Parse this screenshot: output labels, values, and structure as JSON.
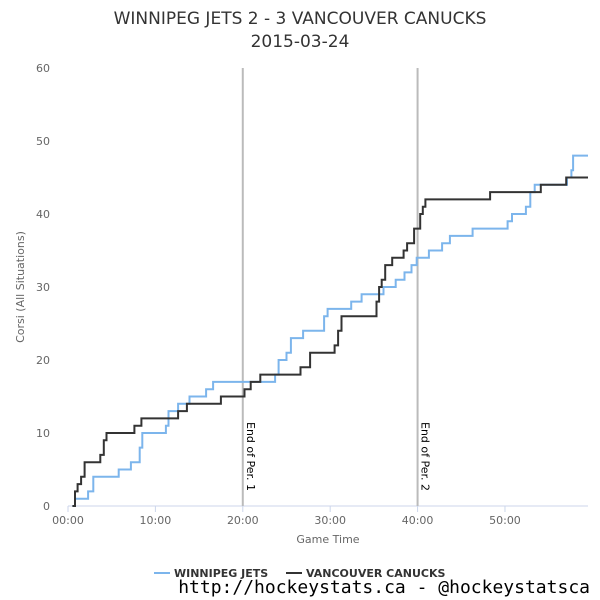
{
  "chart_data": {
    "type": "line",
    "title": "WINNIPEG JETS 2 - 3 VANCOUVER CANUCKS",
    "subtitle": "2015-03-24",
    "xlabel": "Game Time",
    "ylabel": "Corsi (All Situations)",
    "xlim": [
      0,
      59.5
    ],
    "ylim": [
      0,
      60
    ],
    "x_ticks": [
      {
        "value": 0,
        "label": "00:00"
      },
      {
        "value": 10,
        "label": "10:00"
      },
      {
        "value": 20,
        "label": "20:00"
      },
      {
        "value": 30,
        "label": "30:00"
      },
      {
        "value": 40,
        "label": "40:00"
      },
      {
        "value": 50,
        "label": "50:00"
      }
    ],
    "y_ticks": [
      0,
      10,
      20,
      30,
      40,
      50,
      60
    ],
    "grid": false,
    "legend_position": "bottom",
    "annotations": [
      {
        "x": 20,
        "label": "End of Per. 1"
      },
      {
        "x": 40,
        "label": "End of Per. 2"
      }
    ],
    "series": [
      {
        "name": "WINNIPEG JETS",
        "color": "#7cb5ec",
        "points": [
          [
            0.5,
            0
          ],
          [
            0.8,
            1
          ],
          [
            2.3,
            2
          ],
          [
            2.9,
            4
          ],
          [
            5.8,
            5
          ],
          [
            7.2,
            6
          ],
          [
            8.2,
            8
          ],
          [
            8.5,
            10
          ],
          [
            11.2,
            11
          ],
          [
            11.5,
            13
          ],
          [
            12.6,
            14
          ],
          [
            13.9,
            15
          ],
          [
            15.8,
            16
          ],
          [
            16.6,
            17
          ],
          [
            23.7,
            18
          ],
          [
            24.1,
            20
          ],
          [
            25.0,
            21
          ],
          [
            25.5,
            23
          ],
          [
            26.9,
            24
          ],
          [
            29.3,
            26
          ],
          [
            29.7,
            27
          ],
          [
            32.4,
            28
          ],
          [
            33.6,
            29
          ],
          [
            36.1,
            30
          ],
          [
            37.5,
            31
          ],
          [
            38.5,
            32
          ],
          [
            39.3,
            33
          ],
          [
            39.9,
            34
          ],
          [
            41.3,
            35
          ],
          [
            42.8,
            36
          ],
          [
            43.7,
            37
          ],
          [
            46.3,
            38
          ],
          [
            50.3,
            39
          ],
          [
            50.8,
            40
          ],
          [
            52.4,
            41
          ],
          [
            52.9,
            43
          ],
          [
            53.4,
            44
          ],
          [
            57.1,
            45
          ],
          [
            57.6,
            46
          ],
          [
            57.8,
            48
          ],
          [
            59.5,
            48
          ]
        ]
      },
      {
        "name": "VANCOUVER CANUCKS",
        "color": "#333333",
        "points": [
          [
            0.5,
            0
          ],
          [
            0.8,
            2
          ],
          [
            1.1,
            3
          ],
          [
            1.5,
            4
          ],
          [
            1.9,
            6
          ],
          [
            3.7,
            7
          ],
          [
            4.1,
            9
          ],
          [
            4.4,
            10
          ],
          [
            7.6,
            11
          ],
          [
            8.4,
            12
          ],
          [
            12.6,
            13
          ],
          [
            13.6,
            14
          ],
          [
            17.5,
            15
          ],
          [
            20.2,
            16
          ],
          [
            20.9,
            17
          ],
          [
            22.0,
            18
          ],
          [
            26.6,
            19
          ],
          [
            27.7,
            21
          ],
          [
            30.5,
            22
          ],
          [
            30.9,
            24
          ],
          [
            31.3,
            26
          ],
          [
            35.3,
            28
          ],
          [
            35.6,
            30
          ],
          [
            35.9,
            31
          ],
          [
            36.3,
            33
          ],
          [
            37.1,
            34
          ],
          [
            38.4,
            35
          ],
          [
            38.8,
            36
          ],
          [
            39.6,
            38
          ],
          [
            40.3,
            40
          ],
          [
            40.6,
            41
          ],
          [
            40.9,
            42
          ],
          [
            48.3,
            43
          ],
          [
            54.1,
            44
          ],
          [
            57.0,
            45
          ],
          [
            59.5,
            45
          ]
        ]
      }
    ]
  },
  "credit": "http://hockeystats.ca - @hockeystatsca"
}
